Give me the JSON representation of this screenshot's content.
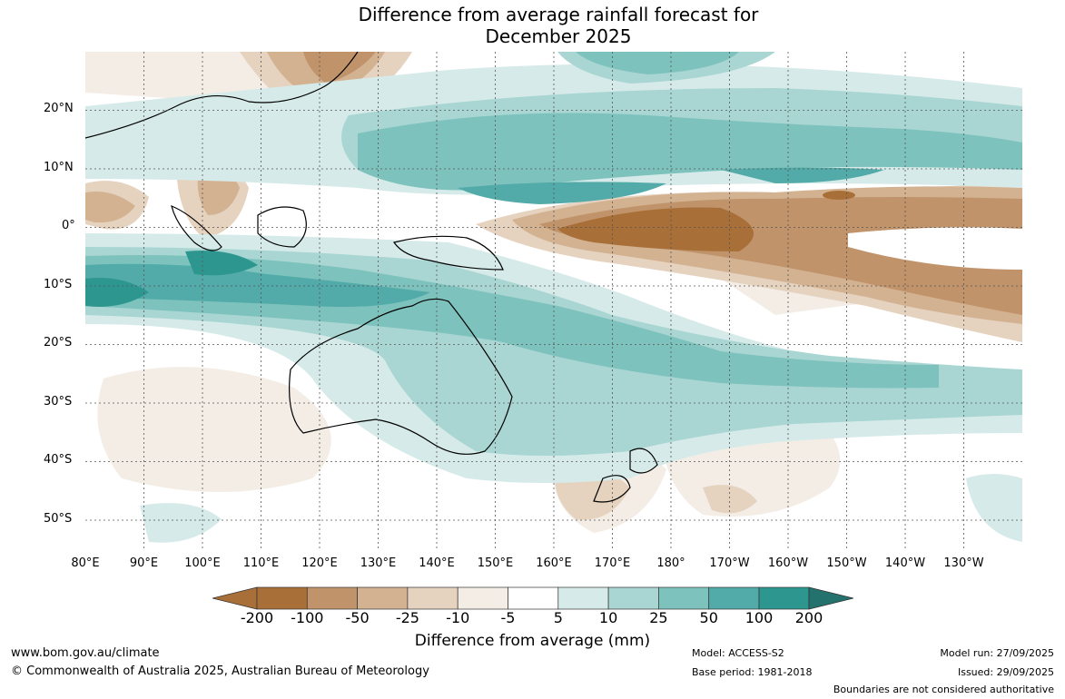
{
  "title": {
    "line1": "Difference from average rainfall forecast for",
    "line2": "December 2025"
  },
  "map": {
    "lat_labels": [
      "20°N",
      "10°N",
      "0°",
      "10°S",
      "20°S",
      "30°S",
      "40°S",
      "50°S"
    ],
    "lon_labels": [
      "80°E",
      "90°E",
      "100°E",
      "110°E",
      "120°E",
      "130°E",
      "140°E",
      "150°E",
      "160°E",
      "170°E",
      "180°",
      "170°W",
      "160°W",
      "150°W",
      "140°W",
      "130°W"
    ],
    "extent": {
      "lon_min": 80,
      "lon_max": 240,
      "lat_min": -55,
      "lat_max": 30
    }
  },
  "colorbar": {
    "ticks": [
      "-200",
      "-100",
      "-50",
      "-25",
      "-10",
      "-5",
      "5",
      "10",
      "25",
      "50",
      "100",
      "200"
    ],
    "colors": [
      "#a96f38",
      "#c0936b",
      "#d3b291",
      "#e5d2bf",
      "#f3ede6",
      "#ffffff",
      "#d6ebe9",
      "#a9d6d3",
      "#7dc2bd",
      "#52aba8",
      "#2d968f",
      "#24726e"
    ],
    "title": "Difference from average (mm)"
  },
  "footer": {
    "website": "www.bom.gov.au/climate",
    "copyright": "© Commonwealth of Australia 2025, Australian Bureau of Meteorology",
    "model": "Model: ACCESS-S2",
    "base_period": "Base period: 1981-2018",
    "model_run": "Model run: 27/09/2025",
    "issued": "Issued: 29/09/2025",
    "disclaimer": "Boundaries are not considered authoritative"
  }
}
